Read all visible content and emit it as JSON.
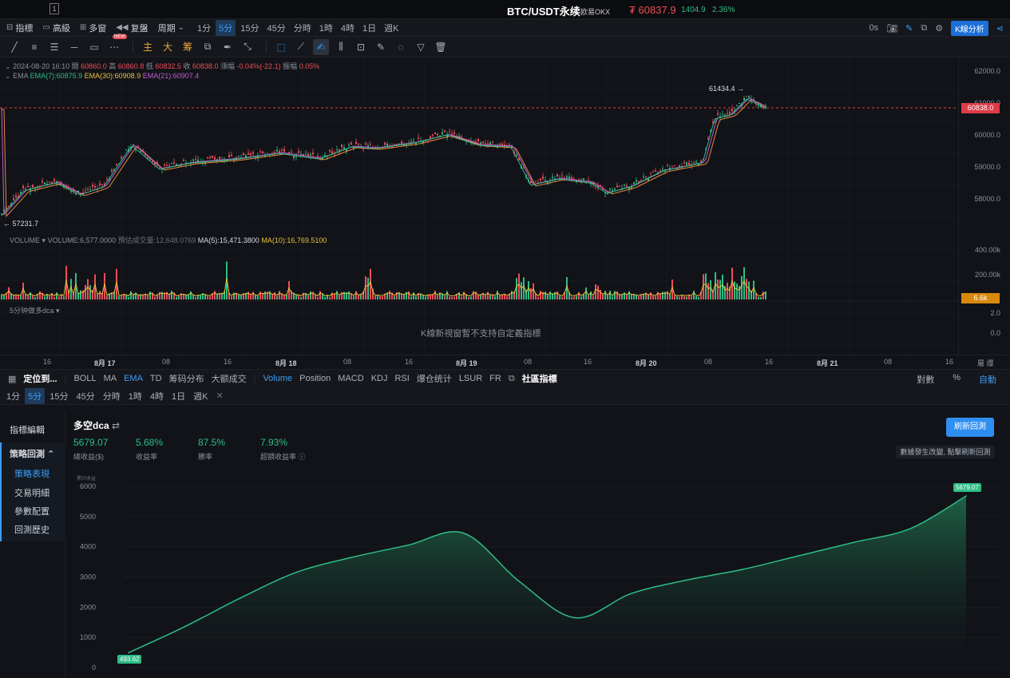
{
  "titlebar": {
    "window_index": "1",
    "symbol": "BTC/USDT永续",
    "exchange": "欧易OKX",
    "price": "₮ 60837.9",
    "change": "1404.9",
    "change_pct": "2.36%"
  },
  "toolbar1": {
    "indicators": "指標",
    "advanced": "高級",
    "multi": "多窗",
    "replay": "复盤",
    "period": "周期",
    "periods": [
      "1分",
      "5分",
      "15分",
      "45分",
      "分時",
      "1時",
      "4時",
      "1日",
      "週K"
    ],
    "active_period": "5分",
    "countdown": "0s",
    "kline_analysis": "K線分析"
  },
  "toolbar2": {
    "new_badge": "NEW",
    "main": "主",
    "big": "大",
    "chips": "筹"
  },
  "chart_info": {
    "date": "2024-08-20 16:10",
    "open_label": "開",
    "open": "60860.0",
    "high_label": "高",
    "high": "60860.8",
    "low_label": "低",
    "low": "60832.5",
    "close_label": "收",
    "close": "60838.0",
    "change_label": "漲幅",
    "change": "-0.04%(-22.1)",
    "amp_label": "振幅",
    "amp": "0.05%",
    "ema_label": "EMA",
    "ema7": "EMA(7):60875.9",
    "ema30": "EMA(30):60908.9",
    "ema21": "EMA(21):60907.4",
    "high_mark": "61434.4 →",
    "low_mark": "← 57231.7",
    "current_price_tag": "60838.0"
  },
  "price_axis": [
    "62000.0",
    "61000.0",
    "60000.0",
    "59000.0",
    "58000.0"
  ],
  "volume_info": {
    "label": "VOLUME",
    "vol": "VOLUME:6,577.0000",
    "est": "預估成交量:12,648.0769",
    "ma5": "MA(5):15,471.3800",
    "ma10": "MA(10):16,769.5100",
    "axis": [
      "400.00k",
      "200.00k"
    ],
    "badge": "6.6k"
  },
  "custom_indicator": {
    "name": "5分钟做多dca",
    "message": "K線新視窗暫不支持自定義指標",
    "axis": [
      "2.0",
      "0.0"
    ]
  },
  "time_axis": {
    "labels": [
      "16",
      "8月 17",
      "08",
      "16",
      "8月 18",
      "08",
      "16",
      "8月 19",
      "08",
      "16",
      "8月 20",
      "08",
      "16",
      "8月 21",
      "08",
      "16"
    ],
    "right": "屬 爆"
  },
  "indicator_bar": {
    "locate": "定位到...",
    "items": [
      "BOLL",
      "MA",
      "EMA",
      "TD",
      "筹码分布",
      "大额成交"
    ],
    "items2": [
      "Volume",
      "Position",
      "MACD",
      "KDJ",
      "RSI",
      "爆仓统计",
      "LSUR",
      "FR"
    ],
    "community": "社區指標",
    "right": [
      "對數",
      "%",
      "自動"
    ]
  },
  "period_bar": [
    "1分",
    "5分",
    "15分",
    "45分",
    "分時",
    "1時",
    "4時",
    "1日",
    "週K"
  ],
  "side_panel": {
    "edit": "指標編輯",
    "backtest": "策略回測",
    "sub": [
      "策略表現",
      "交易明細",
      "參數配置",
      "回測歷史"
    ]
  },
  "strategy": {
    "name": "多空dca",
    "stats": [
      {
        "value": "5679.07",
        "label": "總收益($)"
      },
      {
        "value": "5.68%",
        "label": "收益率"
      },
      {
        "value": "87.5%",
        "label": "勝率"
      },
      {
        "value": "7.93%",
        "label": "超額收益率"
      }
    ],
    "refresh": "刷新回測",
    "hint": "數據發生改變, 點擊刷新回測",
    "yaxis_title": "累計收益",
    "start_label": "493.62",
    "end_label": "5679.07"
  },
  "chart_data": {
    "type": "area",
    "title": "",
    "ylabel": "累計收益",
    "ylim": [
      0,
      6000
    ],
    "yticks": [
      0,
      1000,
      2000,
      3000,
      4000,
      5000,
      6000
    ],
    "x": [
      1,
      2,
      3,
      4,
      5,
      6,
      7,
      8,
      9,
      10,
      11,
      12,
      13,
      14,
      15,
      16
    ],
    "values": [
      493.62,
      1350,
      2300,
      3150,
      3650,
      4050,
      4450,
      2850,
      1650,
      2450,
      2900,
      3250,
      3700,
      4150,
      4600,
      5679.07
    ],
    "color": "#2ebd85"
  }
}
